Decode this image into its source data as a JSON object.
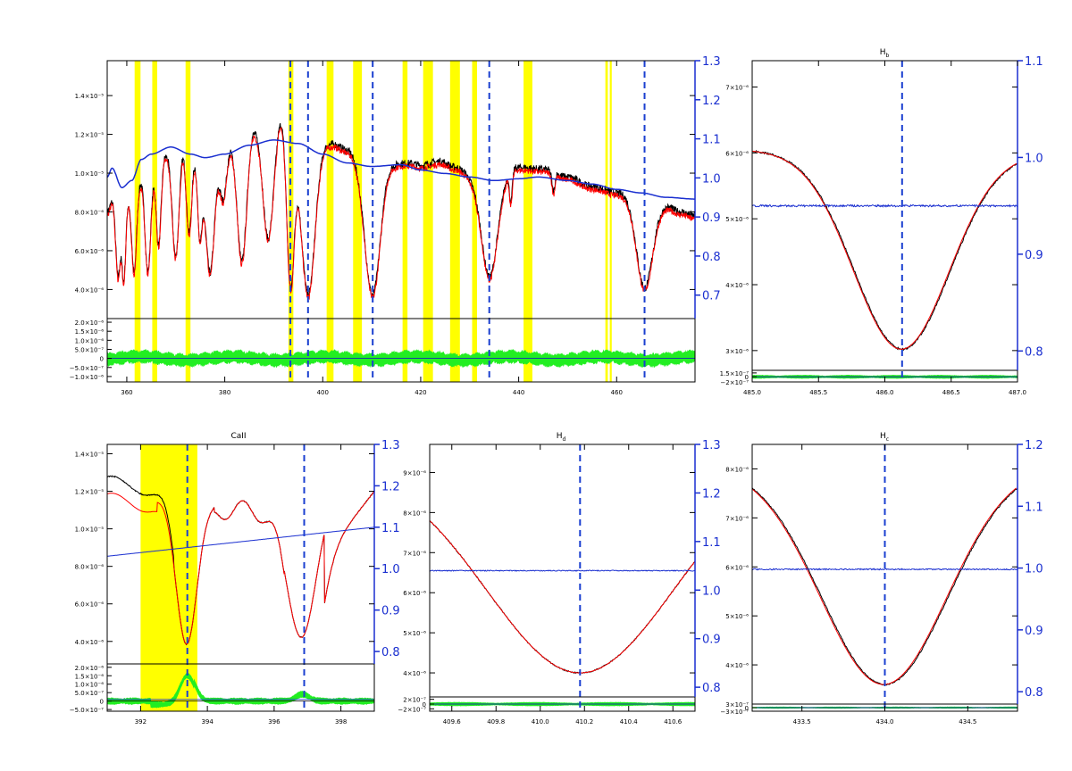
{
  "colors": {
    "observed": "#000000",
    "model": "#ff0000",
    "ratio": "#1a2fd0",
    "residual": "#22ee22",
    "masked": "#ffff00",
    "line_marker": "#1a3fd0"
  },
  "chart_data": [
    {
      "panel": "full-spectrum",
      "type": "line",
      "title": "",
      "xlim": [
        356,
        476
      ],
      "ylim": [
        2.5e-06,
        1.58e-05
      ],
      "y_ticks": [
        "4.0×10⁻⁶",
        "6.0×10⁻⁶",
        "8.0×10⁻⁶",
        "1.0×10⁻⁵",
        "1.2×10⁻⁵",
        "1.4×10⁻⁵"
      ],
      "y_tick_values": [
        4e-06,
        6e-06,
        8e-06,
        1e-05,
        1.2e-05,
        1.4e-05
      ],
      "y2lim": [
        0.64,
        1.3
      ],
      "y2_ticks": [
        "0.7",
        "0.8",
        "0.9",
        "1.0",
        "1.1",
        "1.2",
        "1.3"
      ],
      "y2_tick_values": [
        0.7,
        0.8,
        0.9,
        1.0,
        1.1,
        1.2,
        1.3
      ],
      "x_ticks": [
        "360",
        "380",
        "400",
        "420",
        "440",
        "460"
      ],
      "x_tick_values": [
        360,
        380,
        400,
        420,
        440,
        460
      ],
      "continuum_nodes": [
        [
          356,
          9.2e-06
        ],
        [
          357,
          9.7e-06
        ],
        [
          359,
          8.6e-06
        ],
        [
          361,
          9e-06
        ],
        [
          363,
          1.02e-05
        ],
        [
          365,
          1.05e-05
        ],
        [
          369,
          1.09e-05
        ],
        [
          373,
          1.05e-05
        ],
        [
          376,
          1.03e-05
        ],
        [
          380,
          1.05e-05
        ],
        [
          385,
          1.1e-05
        ],
        [
          390,
          1.13e-05
        ],
        [
          395,
          1.11e-05
        ],
        [
          400,
          1.05e-05
        ],
        [
          405,
          1e-05
        ],
        [
          410,
          9.8e-06
        ],
        [
          416,
          9.9e-06
        ],
        [
          420,
          9.6e-06
        ],
        [
          425,
          9.4e-06
        ],
        [
          430,
          9.2e-06
        ],
        [
          435,
          9e-06
        ],
        [
          440,
          9.1e-06
        ],
        [
          444,
          9.2e-06
        ],
        [
          450,
          9e-06
        ],
        [
          455,
          8.8e-06
        ],
        [
          460,
          8.5e-06
        ],
        [
          465,
          8.3e-06
        ],
        [
          470,
          8.05e-06
        ],
        [
          476,
          7.95e-06
        ]
      ],
      "flux_nodes": [
        [
          356,
          8e-06
        ],
        [
          358,
          9.5e-06
        ],
        [
          361,
          8.8e-06
        ],
        [
          364,
          1.03e-05
        ],
        [
          368,
          1.1e-05
        ],
        [
          372,
          1.2e-05
        ],
        [
          376,
          1.1e-05
        ],
        [
          379,
          1.12e-05
        ],
        [
          383,
          1.22e-05
        ],
        [
          386,
          1.27e-05
        ],
        [
          388,
          1.35e-05
        ],
        [
          390,
          1.38e-05
        ],
        [
          392,
          1.36e-05
        ],
        [
          394,
          1.28e-05
        ],
        [
          396,
          1.2e-05
        ],
        [
          399,
          1.17e-05
        ],
        [
          402,
          1.15e-05
        ],
        [
          405,
          1.12e-05
        ],
        [
          408,
          1.08e-05
        ],
        [
          412,
          1.1e-05
        ],
        [
          415,
          1.05e-05
        ],
        [
          418,
          1.05e-05
        ],
        [
          420,
          1.04e-05
        ],
        [
          424,
          1.06e-05
        ],
        [
          427,
          1.03e-05
        ],
        [
          430,
          1e-05
        ],
        [
          433,
          1.05e-05
        ],
        [
          436,
          1.03e-05
        ],
        [
          440,
          1.03e-05
        ],
        [
          445,
          1.02e-05
        ],
        [
          450,
          9.8e-06
        ],
        [
          455,
          9.3e-06
        ],
        [
          460,
          9e-06
        ],
        [
          465,
          8.7e-06
        ],
        [
          470,
          8.3e-06
        ],
        [
          473,
          8e-06
        ],
        [
          476,
          7.8e-06
        ]
      ],
      "absorption_lines": [
        {
          "x": 358.2,
          "depth": 4.8e-06,
          "width": 0.5
        },
        {
          "x": 359.4,
          "depth": 4.5e-06,
          "width": 0.4
        },
        {
          "x": 361.5,
          "depth": 4e-06,
          "width": 0.5
        },
        {
          "x": 364.3,
          "depth": 5.4e-06,
          "width": 0.6
        },
        {
          "x": 366.5,
          "depth": 4.5e-06,
          "width": 0.5
        },
        {
          "x": 370.0,
          "depth": 5.8e-06,
          "width": 0.7
        },
        {
          "x": 372.7,
          "depth": 5e-06,
          "width": 0.6
        },
        {
          "x": 374.9,
          "depth": 4.2e-06,
          "width": 0.5
        },
        {
          "x": 377.0,
          "depth": 6.2e-06,
          "width": 0.9
        },
        {
          "x": 379.7,
          "depth": 2.6e-06,
          "width": 0.7
        },
        {
          "x": 383.5,
          "depth": 6.8e-06,
          "width": 1.0
        },
        {
          "x": 388.9,
          "depth": 7e-06,
          "width": 1.2
        },
        {
          "x": 393.4,
          "depth": 8.6e-06,
          "width": 0.8
        },
        {
          "x": 397.0,
          "depth": 8.2e-06,
          "width": 1.4
        },
        {
          "x": 410.2,
          "depth": 7.2e-06,
          "width": 1.6
        },
        {
          "x": 434.0,
          "depth": 5.8e-06,
          "width": 1.7
        },
        {
          "x": 438.4,
          "depth": 1.6e-06,
          "width": 0.3
        },
        {
          "x": 447.1,
          "depth": 1e-06,
          "width": 0.3
        },
        {
          "x": 486.1,
          "depth": 0,
          "width": 1.0
        },
        {
          "x": 465.7,
          "depth": 4.6e-06,
          "width": 1.6
        }
      ],
      "masked_regions": [
        [
          361.6,
          362.8
        ],
        [
          365.2,
          366.2
        ],
        [
          372.0,
          373.0
        ],
        [
          393.0,
          394.0
        ],
        [
          400.8,
          402.2
        ],
        [
          406.2,
          408.0
        ],
        [
          416.3,
          417.3
        ],
        [
          420.5,
          422.5
        ],
        [
          426.0,
          428.0
        ],
        [
          430.5,
          431.5
        ],
        [
          441.0,
          442.8
        ],
        [
          457.7,
          458.2
        ],
        [
          458.6,
          459.0
        ]
      ],
      "line_markers": [
        393.4,
        397.0,
        410.2,
        434.0,
        465.7
      ],
      "residual_ylim": [
        -1.3e-06,
        2.2e-06
      ],
      "residual_ticks": [
        "2.0×10⁻⁶",
        "1.5×10⁻⁶",
        "1.0×10⁻⁶",
        "5.0×10⁻⁷",
        "0",
        "−5.0×10⁻⁷",
        "−1.0×10⁻⁶"
      ],
      "residual_tick_values": [
        2e-06,
        1.5e-06,
        1e-06,
        5e-07,
        0,
        -5e-07,
        -1e-06
      ],
      "residual_amplitude": 2.5e-07
    },
    {
      "panel": "hbeta",
      "type": "line",
      "title": "H",
      "title_sub": "b",
      "xlim": [
        485.0,
        487.0
      ],
      "ylim": [
        2.7e-06,
        7.4e-06
      ],
      "y_ticks": [
        "3×10⁻⁶",
        "4×10⁻⁶",
        "5×10⁻⁶",
        "6×10⁻⁶",
        "7×10⁻⁶"
      ],
      "y_tick_values": [
        3e-06,
        4e-06,
        5e-06,
        6e-06,
        7e-06
      ],
      "y2lim": [
        0.78,
        1.1
      ],
      "y2_ticks": [
        "0.8",
        "0.9",
        "1.0",
        "1.1"
      ],
      "y2_tick_values": [
        0.8,
        0.9,
        1.0,
        1.1
      ],
      "x_ticks": [
        "485.0",
        "485.5",
        "486.0",
        "486.5",
        "487.0"
      ],
      "x_tick_values": [
        485.0,
        485.5,
        486.0,
        486.5,
        487.0
      ],
      "line_markers": [
        486.13
      ],
      "profile": {
        "center": 486.13,
        "continuum": 6.05e-06,
        "depth": 3e-06,
        "sigma": 0.36,
        "continuum_right": 6e-06
      },
      "model_offset": -0.02,
      "ratio_level": 0.95,
      "residual_ylim": [
        -2e-07,
        2.5e-07
      ],
      "residual_ticks": [
        "1.5×10⁻⁷",
        "0",
        "−2×10⁻⁷"
      ],
      "residual_tick_values": [
        1.5e-07,
        0,
        -2e-07
      ],
      "residual_amplitude": 5e-08
    },
    {
      "panel": "caii",
      "type": "line",
      "title": "CaII",
      "xlim": [
        391.0,
        399.0
      ],
      "ylim": [
        2.8e-06,
        1.45e-05
      ],
      "y_ticks": [
        "4.0×10⁻⁶",
        "6.0×10⁻⁶",
        "8.0×10⁻⁶",
        "1.0×10⁻⁵",
        "1.2×10⁻⁵",
        "1.4×10⁻⁵"
      ],
      "y_tick_values": [
        4e-06,
        6e-06,
        8e-06,
        1e-05,
        1.2e-05,
        1.4e-05
      ],
      "y2lim": [
        0.77,
        1.3
      ],
      "y2_ticks": [
        "0.8",
        "0.9",
        "1.0",
        "1.1",
        "1.2",
        "1.3"
      ],
      "y2_tick_values": [
        0.8,
        0.9,
        1.0,
        1.1,
        1.2,
        1.3
      ],
      "x_ticks": [
        "392",
        "394",
        "396",
        "398"
      ],
      "x_tick_values": [
        392,
        394,
        396,
        398
      ],
      "line_markers": [
        393.4,
        396.9
      ],
      "masked_regions": [
        [
          392.0,
          393.7
        ]
      ],
      "ratio_level_left": 1.03,
      "ratio_level_right": 1.1,
      "residual_ylim": [
        -6e-07,
        2.2e-06
      ],
      "residual_ticks": [
        "2.0×10⁻⁶",
        "1.5×10⁻⁶",
        "1.0×10⁻⁶",
        "5.0×10⁻⁷",
        "0",
        "−5.0×10⁻⁷"
      ],
      "residual_tick_values": [
        2e-06,
        1.5e-06,
        1e-06,
        5e-07,
        0,
        -5e-07
      ],
      "residual_amplitude": 2e-07
    },
    {
      "panel": "hdelta",
      "type": "line",
      "title": "H",
      "title_sub": "d",
      "xlim": [
        409.5,
        410.7
      ],
      "ylim": [
        3.4e-06,
        9.7e-06
      ],
      "y_ticks": [
        "4×10⁻⁶",
        "5×10⁻⁶",
        "6×10⁻⁶",
        "7×10⁻⁶",
        "8×10⁻⁶",
        "9×10⁻⁶"
      ],
      "y_tick_values": [
        4e-06,
        5e-06,
        6e-06,
        7e-06,
        8e-06,
        9e-06
      ],
      "y2lim": [
        0.78,
        1.3
      ],
      "y2_ticks": [
        "0.8",
        "0.9",
        "1.0",
        "1.1",
        "1.2",
        "1.3"
      ],
      "y2_tick_values": [
        0.8,
        0.9,
        1.0,
        1.1,
        1.2,
        1.3
      ],
      "x_ticks": [
        "409.6",
        "409.8",
        "410.0",
        "410.2",
        "410.4",
        "410.6"
      ],
      "x_tick_values": [
        409.6,
        409.8,
        410.0,
        410.2,
        410.4,
        410.6
      ],
      "line_markers": [
        410.18
      ],
      "profile": {
        "center": 410.18,
        "continuum": 9.2e-06,
        "depth": 5.2e-06,
        "sigma": 0.42
      },
      "model_offset": 1.8e-07,
      "ratio_level": 1.04,
      "residual_ylim": [
        -3e-07,
        3e-07
      ],
      "residual_ticks": [
        "2×10⁻⁷",
        "0",
        "−2×10⁻⁷"
      ],
      "residual_tick_values": [
        2e-07,
        0,
        -2e-07
      ],
      "residual_amplitude": 6e-08
    },
    {
      "panel": "hgamma",
      "type": "line",
      "title": "H",
      "title_sub": "c",
      "xlim": [
        433.2,
        434.8
      ],
      "ylim": [
        3.2e-06,
        8.5e-06
      ],
      "y_ticks": [
        "4×10⁻⁶",
        "5×10⁻⁶",
        "6×10⁻⁶",
        "7×10⁻⁶",
        "8×10⁻⁶"
      ],
      "y_tick_values": [
        4e-06,
        5e-06,
        6e-06,
        7e-06,
        8e-06
      ],
      "y2lim": [
        0.78,
        1.2
      ],
      "y2_ticks": [
        "0.8",
        "0.9",
        "1.0",
        "1.1",
        "1.2"
      ],
      "y2_tick_values": [
        0.8,
        0.9,
        1.0,
        1.1,
        1.2
      ],
      "x_ticks": [
        "433.5",
        "434.0",
        "434.5"
      ],
      "x_tick_values": [
        433.5,
        434.0,
        434.5
      ],
      "line_markers": [
        434.0
      ],
      "profile": {
        "center": 434.0,
        "continuum": 8.1e-06,
        "depth": 4.5e-06,
        "sigma": 0.38
      },
      "model_offset": -0.02,
      "ratio_level": 0.998,
      "residual_ylim": [
        -3e-07,
        3e-07
      ],
      "residual_ticks": [
        "3×10⁻⁷",
        "0",
        "−3×10⁻⁷"
      ],
      "residual_tick_values": [
        3e-07,
        0,
        -3e-07
      ],
      "residual_amplitude": 5e-08
    }
  ]
}
